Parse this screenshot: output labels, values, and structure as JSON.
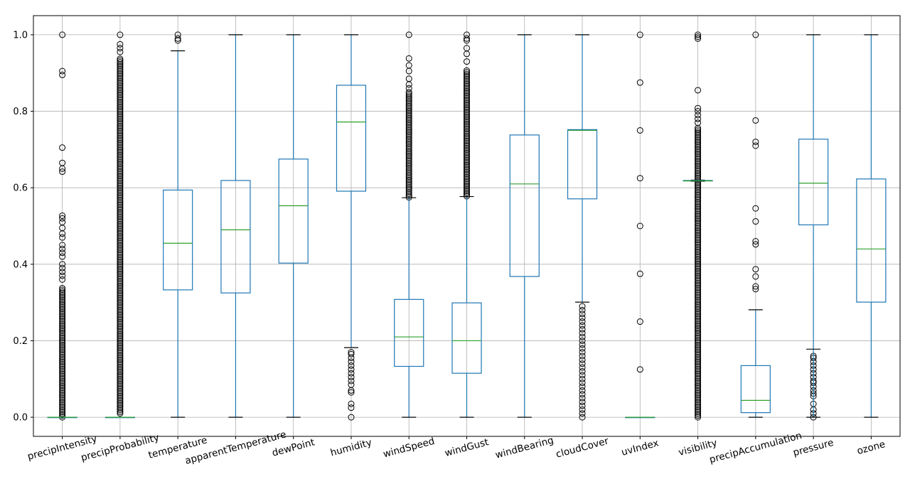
{
  "chart_data": {
    "type": "box",
    "title": "",
    "xlabel": "",
    "ylabel": "",
    "ylim": [
      -0.05,
      1.05
    ],
    "yticks": [
      "0.0",
      "0.2",
      "0.4",
      "0.6",
      "0.8",
      "1.0"
    ],
    "grid": true,
    "colors": {
      "box": "#1f77b4",
      "median": "#2ca02c",
      "whisker_cap": "#000000",
      "flier": "#000000",
      "grid": "#b0b0b0"
    },
    "categories": [
      "precipIntensity",
      "precipProbability",
      "temperature",
      "apparentTemperature",
      "dewPoint",
      "humidity",
      "windSpeed",
      "windGust",
      "windBearing",
      "cloudCover",
      "uvIndex",
      "visibility",
      "precipAccumulation",
      "pressure",
      "ozone"
    ],
    "boxes": [
      {
        "name": "precipIntensity",
        "q1": 0.0,
        "median": 0.0,
        "q3": 0.0,
        "whisker_low": 0.0,
        "whisker_high": 0.0,
        "outliers": [
          1.0,
          0.905,
          0.895,
          0.705,
          0.665,
          0.65,
          0.642,
          0.527,
          0.52,
          0.51,
          0.495,
          0.48,
          0.47,
          0.45,
          0.44,
          0.43,
          0.42,
          0.4,
          0.39,
          0.38,
          0.37,
          0.36
        ],
        "outlier_band": [
          0.0,
          0.34
        ]
      },
      {
        "name": "precipProbability",
        "q1": 0.0,
        "median": 0.0,
        "q3": 0.0,
        "whisker_low": 0.0,
        "whisker_high": 0.0,
        "outliers": [
          1.0,
          0.975,
          0.965,
          0.955
        ],
        "outlier_band": [
          0.01,
          0.94
        ]
      },
      {
        "name": "temperature",
        "q1": 0.333,
        "median": 0.455,
        "q3": 0.594,
        "whisker_low": 0.0,
        "whisker_high": 0.958,
        "outliers": [
          1.0,
          0.99,
          0.985
        ]
      },
      {
        "name": "apparentTemperature",
        "q1": 0.325,
        "median": 0.49,
        "q3": 0.619,
        "whisker_low": 0.0,
        "whisker_high": 1.0,
        "outliers": []
      },
      {
        "name": "dewPoint",
        "q1": 0.403,
        "median": 0.553,
        "q3": 0.675,
        "whisker_low": 0.0,
        "whisker_high": 1.0,
        "outliers": []
      },
      {
        "name": "humidity",
        "q1": 0.591,
        "median": 0.772,
        "q3": 0.868,
        "whisker_low": 0.182,
        "whisker_high": 1.0,
        "outliers": [
          0.17,
          0.165,
          0.155,
          0.145,
          0.135,
          0.125,
          0.115,
          0.105,
          0.095,
          0.085,
          0.07,
          0.065,
          0.035,
          0.025,
          0.0
        ]
      },
      {
        "name": "windSpeed",
        "q1": 0.133,
        "median": 0.21,
        "q3": 0.308,
        "whisker_low": 0.0,
        "whisker_high": 0.574,
        "outliers": [
          1.0,
          0.938,
          0.92,
          0.905,
          0.885,
          0.87,
          0.86
        ],
        "outlier_band": [
          0.575,
          0.85
        ]
      },
      {
        "name": "windGust",
        "q1": 0.115,
        "median": 0.2,
        "q3": 0.299,
        "whisker_low": 0.0,
        "whisker_high": 0.577,
        "outliers": [
          1.0,
          0.99,
          0.985,
          0.965,
          0.95,
          0.93
        ],
        "outlier_band": [
          0.578,
          0.91
        ]
      },
      {
        "name": "windBearing",
        "q1": 0.368,
        "median": 0.61,
        "q3": 0.738,
        "whisker_low": 0.0,
        "whisker_high": 1.0,
        "outliers": []
      },
      {
        "name": "cloudCover",
        "q1": 0.571,
        "median": 0.75,
        "q3": 0.752,
        "whisker_low": 0.301,
        "whisker_high": 1.0,
        "outliers": [
          0.29,
          0.28,
          0.27,
          0.26,
          0.25,
          0.24,
          0.23,
          0.22,
          0.21,
          0.2,
          0.19,
          0.18,
          0.17,
          0.16,
          0.15,
          0.14,
          0.13,
          0.12,
          0.11,
          0.1,
          0.09,
          0.08,
          0.07,
          0.06,
          0.05,
          0.04,
          0.03,
          0.02,
          0.01,
          0.0
        ]
      },
      {
        "name": "uvIndex",
        "q1": 0.0,
        "median": 0.0,
        "q3": 0.0,
        "whisker_low": 0.0,
        "whisker_high": 0.0,
        "outliers": [
          1.0,
          0.875,
          0.75,
          0.625,
          0.5,
          0.375,
          0.25,
          0.125
        ]
      },
      {
        "name": "visibility",
        "q1": 0.618,
        "median": 0.618,
        "q3": 0.619,
        "whisker_low": 0.617,
        "whisker_high": 0.62,
        "outliers": [
          1.0,
          0.995,
          0.99,
          0.855,
          0.808,
          0.8,
          0.79,
          0.78,
          0.77
        ],
        "outlier_band": [
          0.0,
          0.76
        ]
      },
      {
        "name": "precipAccumulation",
        "q1": 0.012,
        "median": 0.044,
        "q3": 0.135,
        "whisker_low": 0.0,
        "whisker_high": 0.281,
        "outliers": [
          1.0,
          0.776,
          0.72,
          0.71,
          0.546,
          0.512,
          0.46,
          0.452,
          0.387,
          0.368,
          0.342,
          0.335
        ]
      },
      {
        "name": "pressure",
        "q1": 0.503,
        "median": 0.612,
        "q3": 0.727,
        "whisker_low": 0.0,
        "whisker_high": 1.0,
        "outliers": [
          0.16,
          0.155,
          0.145,
          0.135,
          0.125,
          0.115,
          0.105,
          0.095,
          0.09,
          0.08,
          0.07,
          0.062,
          0.055,
          0.035,
          0.02,
          0.01,
          0.0
        ],
        "lower_cap": 0.178
      },
      {
        "name": "ozone",
        "q1": 0.301,
        "median": 0.44,
        "q3": 0.623,
        "whisker_low": 0.0,
        "whisker_high": 1.0,
        "outliers": []
      }
    ]
  }
}
